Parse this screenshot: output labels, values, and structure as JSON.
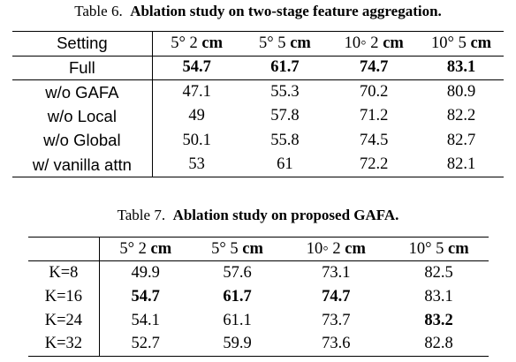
{
  "table6": {
    "label": "Table 6.",
    "caption": "Ablation study on two-stage feature aggregation.",
    "header": {
      "setting": "Setting",
      "cols": [
        {
          "deg": "5° 2",
          "unit": "cm"
        },
        {
          "deg": "5° 5",
          "unit": "cm"
        },
        {
          "deg": "10◦ 2",
          "unit": "cm"
        },
        {
          "deg": "10° 5",
          "unit": "cm"
        }
      ]
    },
    "rows": [
      {
        "setting": "Full",
        "values": [
          "54.7",
          "61.7",
          "74.7",
          "83.1"
        ]
      },
      {
        "setting": "w/o GAFA",
        "values": [
          "47.1",
          "55.3",
          "70.2",
          "80.9"
        ]
      },
      {
        "setting": "w/o Local",
        "values": [
          "49",
          "57.8",
          "71.2",
          "82.2"
        ]
      },
      {
        "setting": "w/o Global",
        "values": [
          "50.1",
          "55.8",
          "74.5",
          "82.7"
        ]
      },
      {
        "setting": "w/ vanilla attn",
        "values": [
          "53",
          "61",
          "72.2",
          "82.1"
        ]
      }
    ]
  },
  "table7": {
    "label": "Table 7.",
    "caption": "Ablation study on proposed GAFA.",
    "header": {
      "setting": "",
      "cols": [
        {
          "deg": "5° 2",
          "unit": "cm"
        },
        {
          "deg": "5° 5",
          "unit": "cm"
        },
        {
          "deg": "10◦ 2",
          "unit": "cm"
        },
        {
          "deg": "10° 5",
          "unit": "cm"
        }
      ]
    },
    "rows": [
      {
        "setting": "K=8",
        "values": [
          "49.9",
          "57.6",
          "73.1",
          "82.5"
        ]
      },
      {
        "setting": "K=16",
        "values": [
          "54.7",
          "61.7",
          "74.7",
          "83.1"
        ]
      },
      {
        "setting": "K=24",
        "values": [
          "54.1",
          "61.1",
          "73.7",
          "83.2"
        ]
      },
      {
        "setting": "K=32",
        "values": [
          "52.7",
          "59.9",
          "73.6",
          "82.8"
        ]
      }
    ]
  }
}
